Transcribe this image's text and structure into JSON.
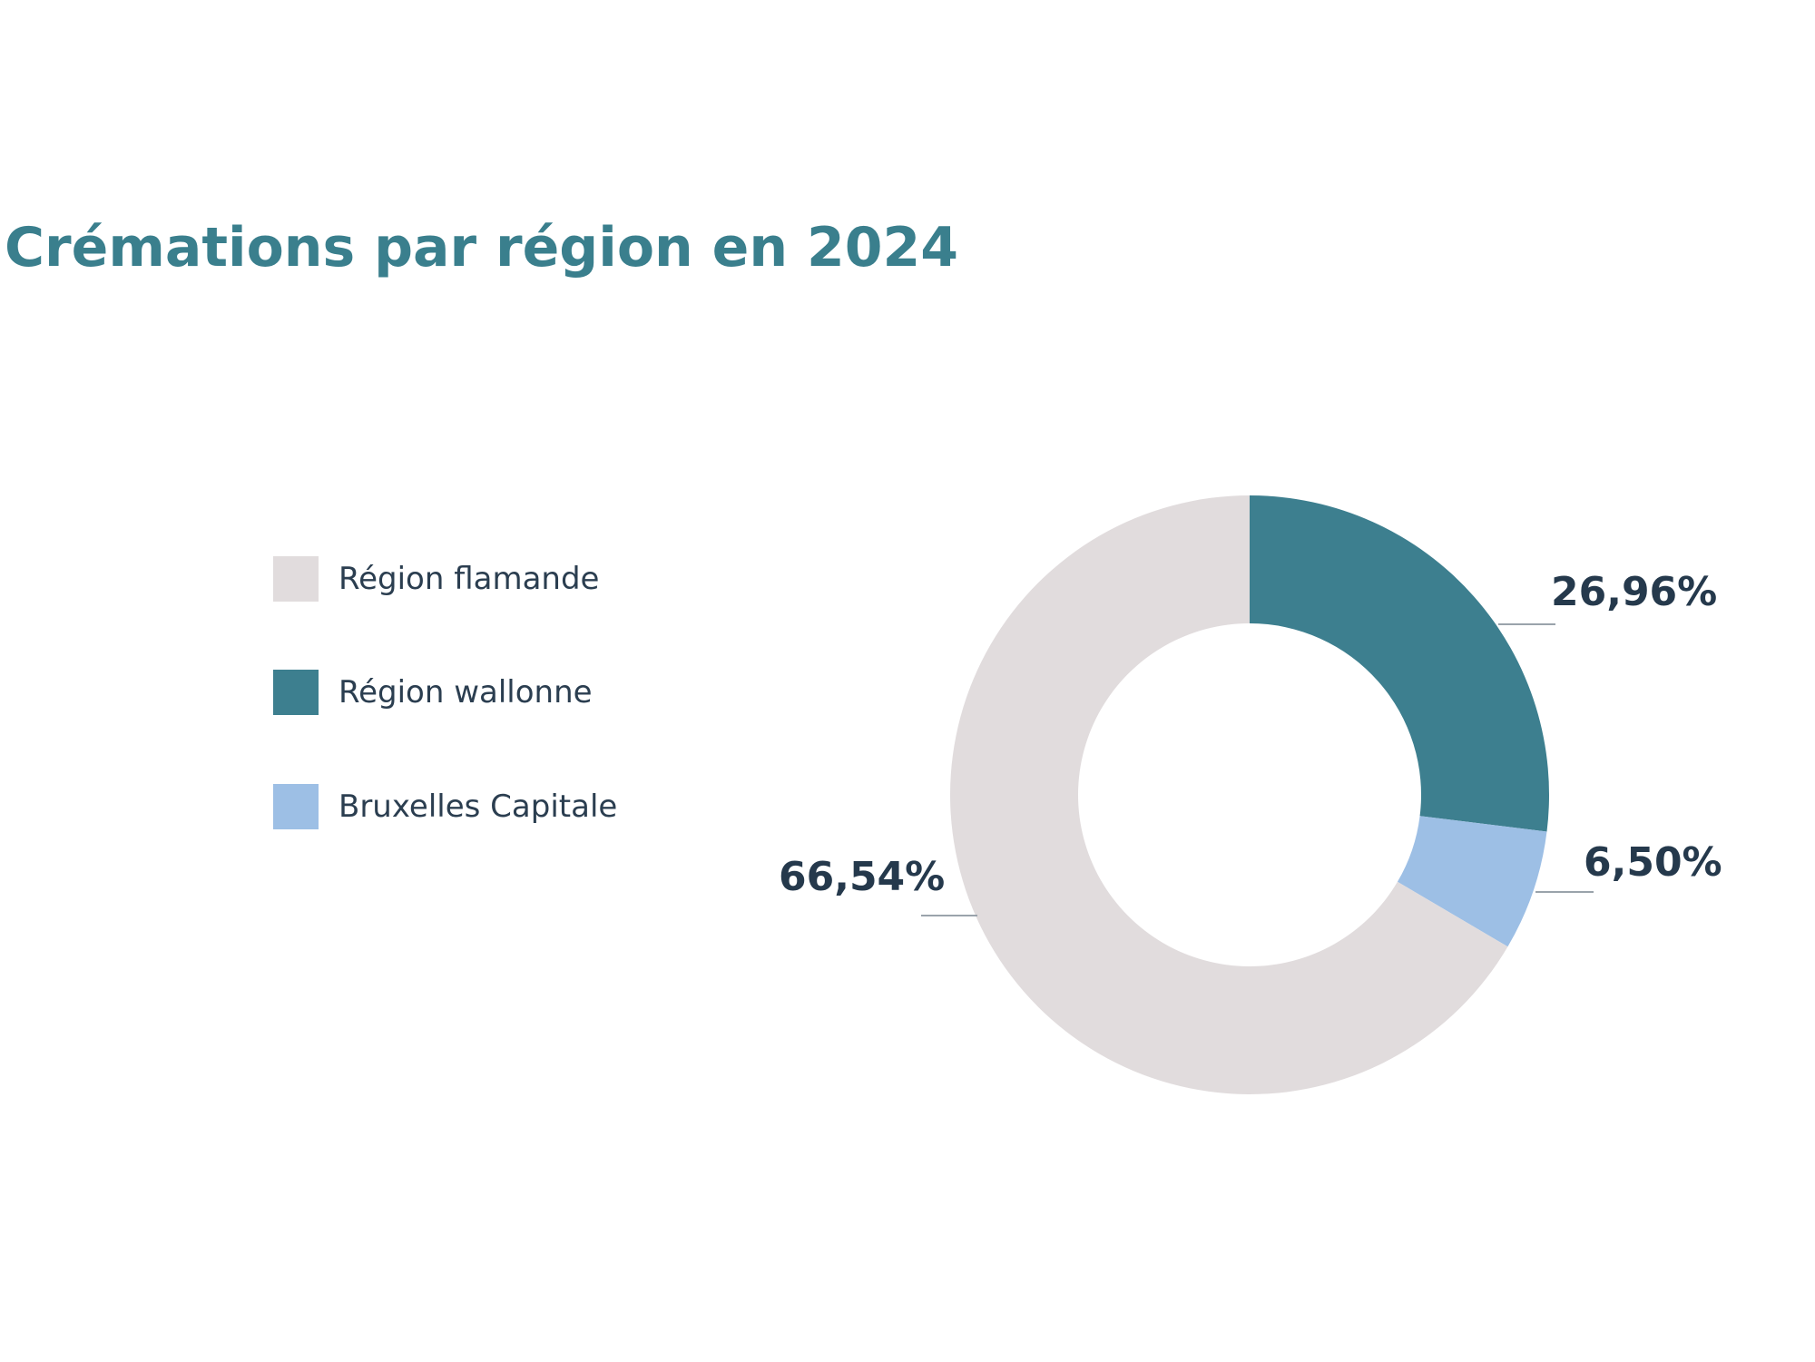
{
  "chart_data": {
    "type": "pie",
    "variant": "donut",
    "title": "Crémations par région en 2024",
    "categories": [
      "Région wallonne",
      "Bruxelles Capitale",
      "Région flamande"
    ],
    "values": [
      26.96,
      6.5,
      66.54
    ],
    "data_labels": [
      "26,96%",
      "6,50%",
      "66,54%"
    ],
    "colors": [
      "#3d7f8f",
      "#9dbfe5",
      "#e1dcdd"
    ],
    "start_angle": "top, clockwise",
    "legend_position": "left",
    "legend": [
      {
        "label": "Région flamande",
        "color": "#e1dcdd"
      },
      {
        "label": "Région wallonne",
        "color": "#3d7f8f"
      },
      {
        "label": "Bruxelles Capitale",
        "color": "#9dbfe5"
      }
    ]
  }
}
